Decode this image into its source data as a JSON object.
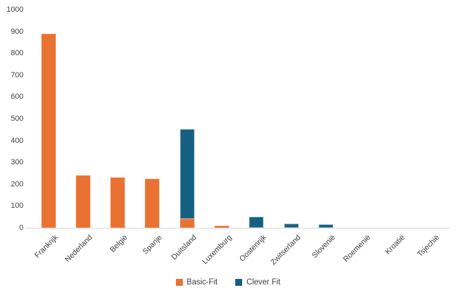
{
  "chart_data": {
    "type": "bar",
    "stacked": true,
    "title": "",
    "xlabel": "",
    "ylabel": "",
    "categories": [
      "Frankrijk",
      "Nederland",
      "België",
      "Spanje",
      "Duitsland",
      "Luxemburg",
      "Oostenrijk",
      "Zwitserland",
      "Slovenië",
      "Roemenië",
      "Kroatië",
      "Tsjechië"
    ],
    "series": [
      {
        "name": "Basic-Fit",
        "color": "#e97132",
        "values": [
          890,
          240,
          230,
          225,
          40,
          10,
          0,
          0,
          0,
          0,
          0,
          0
        ]
      },
      {
        "name": "Clever Fit",
        "color": "#156082",
        "values": [
          0,
          0,
          0,
          0,
          410,
          0,
          50,
          20,
          15,
          0,
          0,
          0
        ]
      }
    ],
    "ylim": [
      0,
      1000
    ],
    "ytick_step": 100,
    "yticks": [
      "0",
      "100",
      "200",
      "300",
      "400",
      "500",
      "600",
      "700",
      "800",
      "900",
      "1000"
    ],
    "grid": false,
    "legend_position": "bottom",
    "axis_line_color": "#d9d9d9",
    "tick_label_color": "#404040"
  }
}
